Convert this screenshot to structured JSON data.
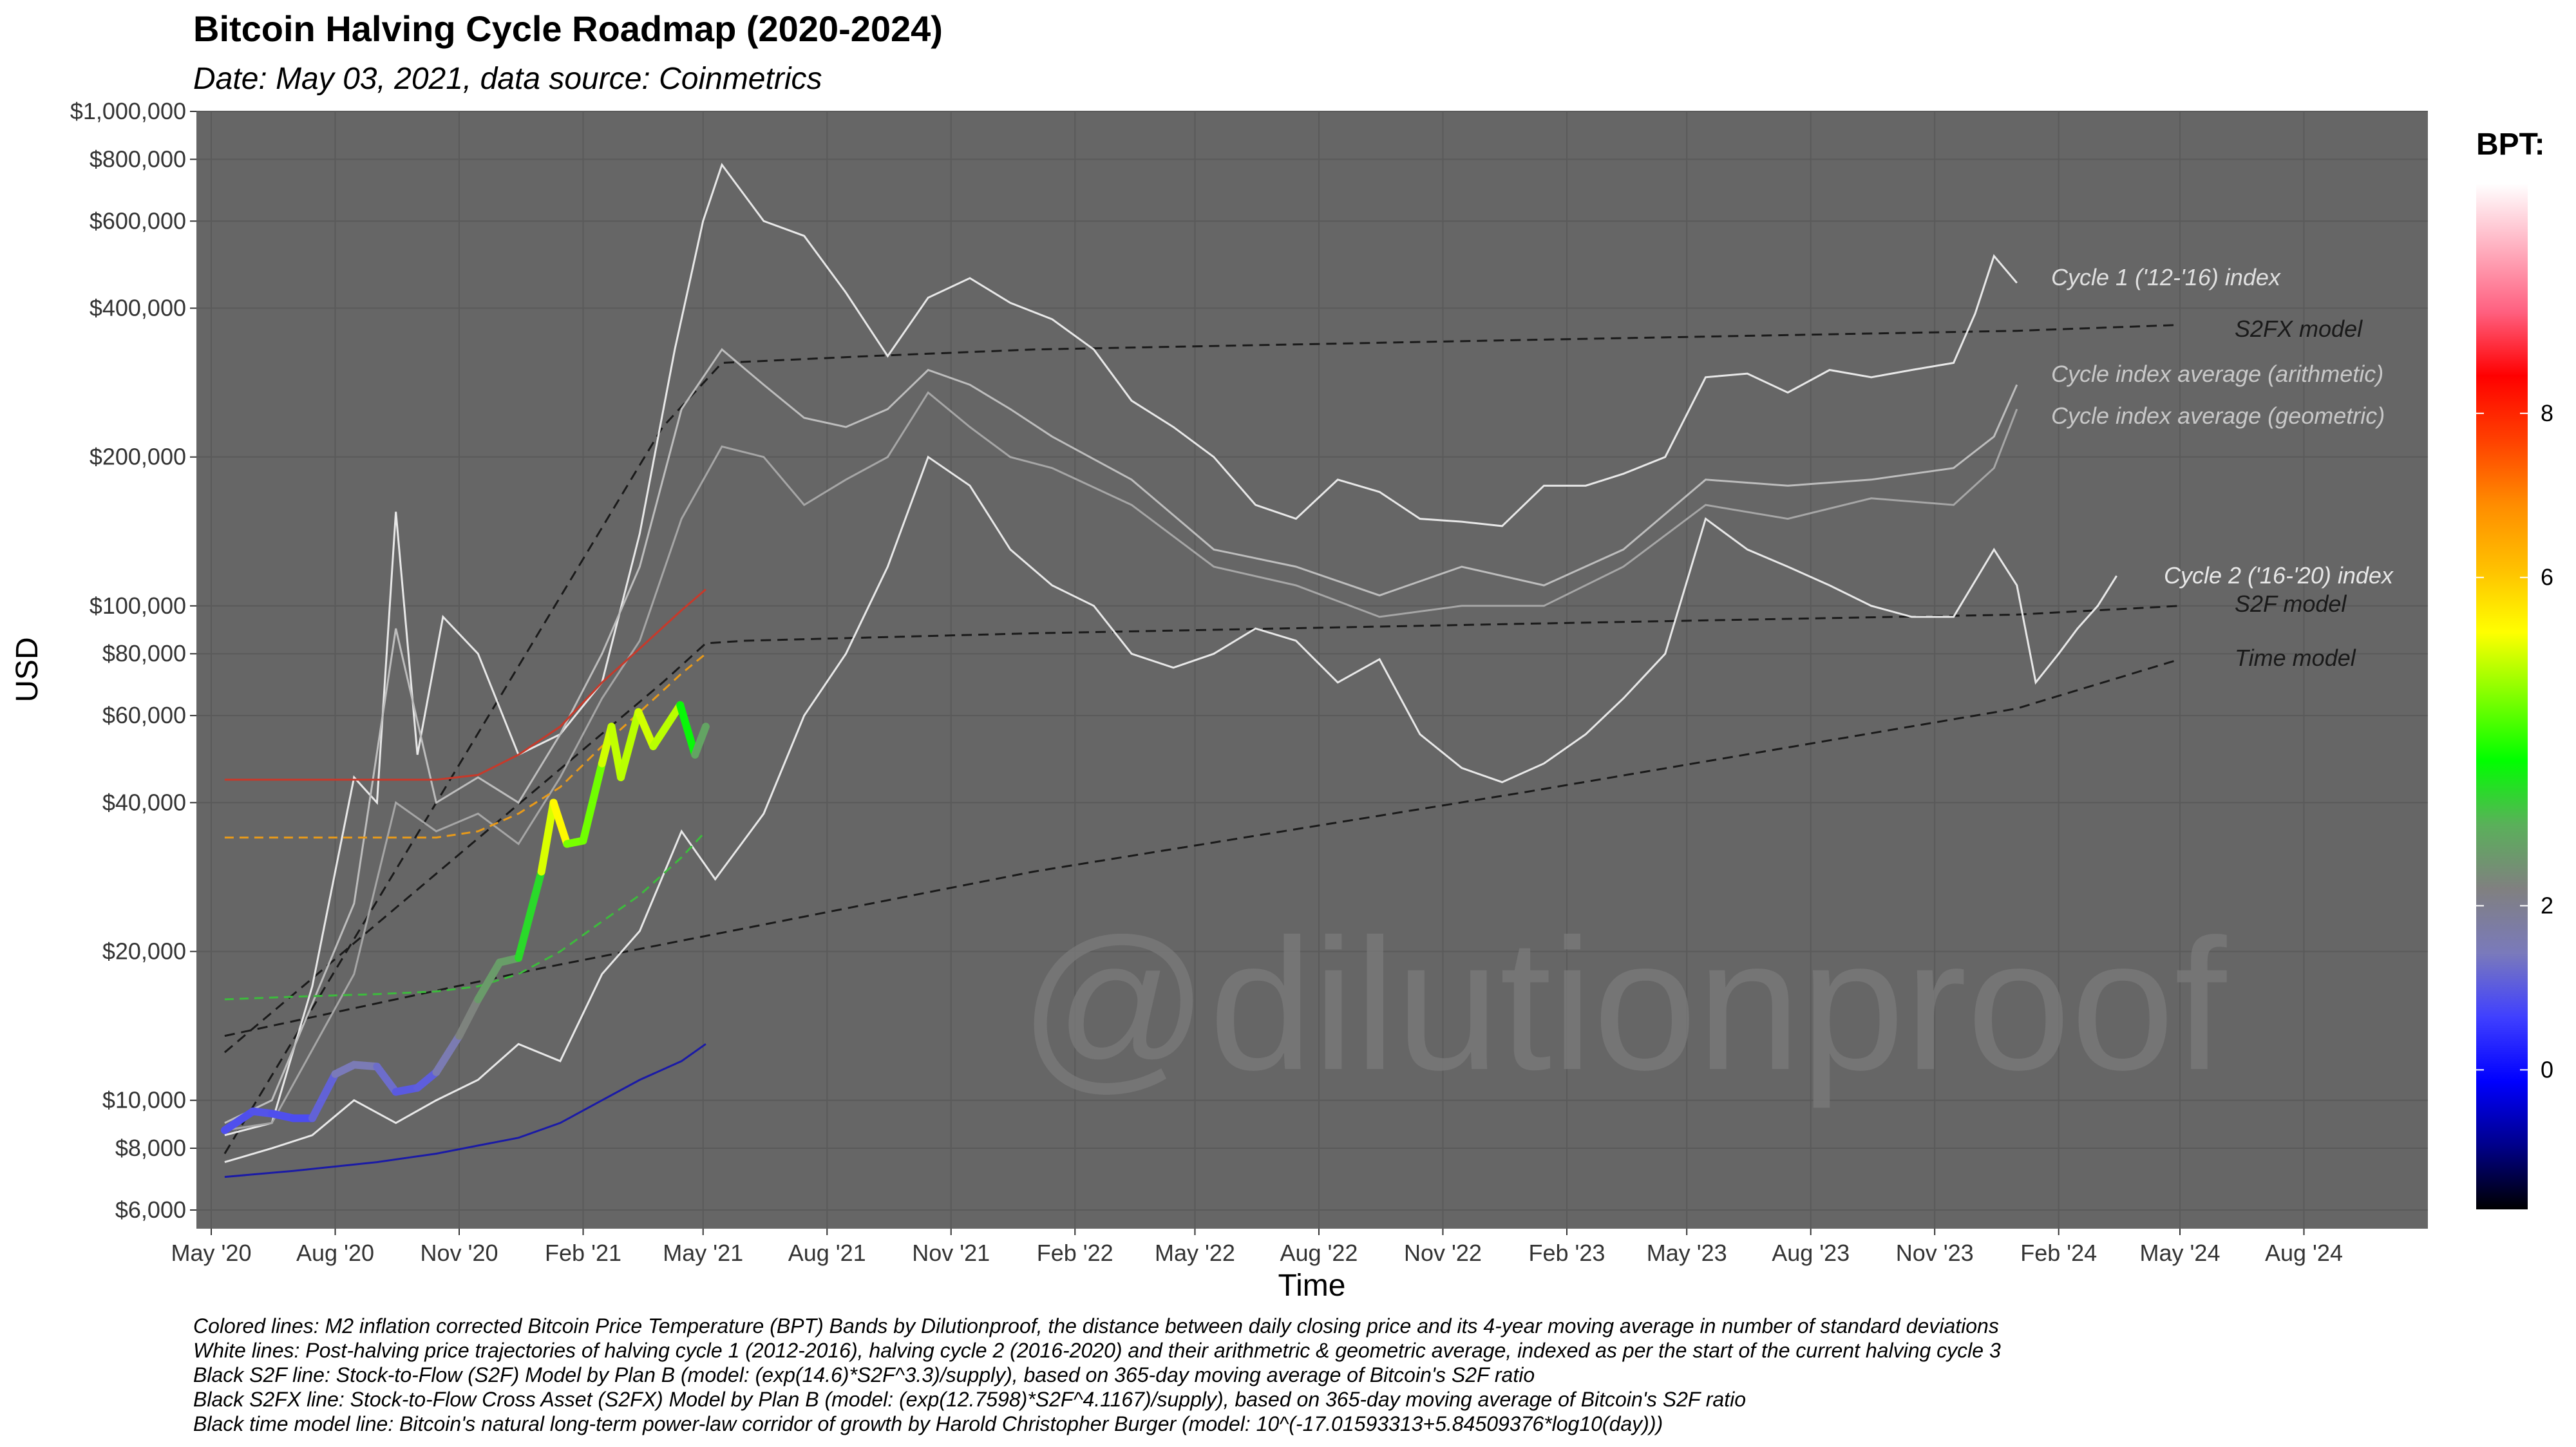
{
  "chart_data": {
    "type": "line",
    "title": "Bitcoin Halving Cycle Roadmap (2020-2024)",
    "subtitle": "Date: May 03, 2021, data source: Coinmetrics",
    "xlabel": "Time",
    "ylabel": "USD",
    "y_scale": "log",
    "ylim": [
      5500,
      1000000
    ],
    "xlim": [
      "2020-04-20",
      "2024-11-01"
    ],
    "grid": true,
    "legend_position": "right",
    "watermark": "@dilutionproof",
    "y_ticks": [
      {
        "value": 6000,
        "label": "$6,000"
      },
      {
        "value": 8000,
        "label": "$8,000"
      },
      {
        "value": 10000,
        "label": "$10,000"
      },
      {
        "value": 20000,
        "label": "$20,000"
      },
      {
        "value": 40000,
        "label": "$40,000"
      },
      {
        "value": 60000,
        "label": "$60,000"
      },
      {
        "value": 80000,
        "label": "$80,000"
      },
      {
        "value": 100000,
        "label": "$100,000"
      },
      {
        "value": 200000,
        "label": "$200,000"
      },
      {
        "value": 400000,
        "label": "$400,000"
      },
      {
        "value": 600000,
        "label": "$600,000"
      },
      {
        "value": 800000,
        "label": "$800,000"
      },
      {
        "value": 1000000,
        "label": "$1,000,000"
      }
    ],
    "x_ticks": [
      {
        "date": "2020-05-01",
        "label": "May '20"
      },
      {
        "date": "2020-08-01",
        "label": "Aug '20"
      },
      {
        "date": "2020-11-01",
        "label": "Nov '20"
      },
      {
        "date": "2021-02-01",
        "label": "Feb '21"
      },
      {
        "date": "2021-05-01",
        "label": "May '21"
      },
      {
        "date": "2021-08-01",
        "label": "Aug '21"
      },
      {
        "date": "2021-11-01",
        "label": "Nov '21"
      },
      {
        "date": "2022-02-01",
        "label": "Feb '22"
      },
      {
        "date": "2022-05-01",
        "label": "May '22"
      },
      {
        "date": "2022-08-01",
        "label": "Aug '22"
      },
      {
        "date": "2022-11-01",
        "label": "Nov '22"
      },
      {
        "date": "2023-02-01",
        "label": "Feb '23"
      },
      {
        "date": "2023-05-01",
        "label": "May '23"
      },
      {
        "date": "2023-08-01",
        "label": "Aug '23"
      },
      {
        "date": "2023-11-01",
        "label": "Nov '23"
      },
      {
        "date": "2024-02-01",
        "label": "Feb '24"
      },
      {
        "date": "2024-05-01",
        "label": "May '24"
      },
      {
        "date": "2024-08-01",
        "label": "Aug '24"
      }
    ],
    "series": [
      {
        "name": "Cycle 1 ('12-'16) index",
        "color": "#e8e8e8",
        "style": "solid",
        "x": [
          "2020-05-11",
          "2020-06-15",
          "2020-07-15",
          "2020-08-15",
          "2020-09-01",
          "2020-09-15",
          "2020-10-01",
          "2020-10-20",
          "2020-11-15",
          "2020-12-15",
          "2021-01-15",
          "2021-02-15",
          "2021-03-15",
          "2021-04-10",
          "2021-05-01",
          "2021-05-15",
          "2021-06-15",
          "2021-07-15",
          "2021-08-15",
          "2021-09-15",
          "2021-10-15",
          "2021-11-15",
          "2021-12-15",
          "2022-01-15",
          "2022-02-15",
          "2022-03-15",
          "2022-04-15",
          "2022-05-15",
          "2022-06-15",
          "2022-07-15",
          "2022-08-15",
          "2022-09-15",
          "2022-10-15",
          "2022-11-15",
          "2022-12-15",
          "2023-01-15",
          "2023-02-15",
          "2023-03-15",
          "2023-04-15",
          "2023-05-15",
          "2023-06-15",
          "2023-07-15",
          "2023-08-15",
          "2023-09-15",
          "2023-10-15",
          "2023-11-15",
          "2023-12-01",
          "2023-12-15",
          "2024-01-01"
        ],
        "values": [
          8500,
          9000,
          17000,
          45000,
          40000,
          155000,
          50000,
          95000,
          80000,
          50000,
          55000,
          70000,
          140000,
          330000,
          600000,
          780000,
          600000,
          560000,
          430000,
          320000,
          420000,
          460000,
          410000,
          380000,
          330000,
          260000,
          230000,
          200000,
          160000,
          150000,
          180000,
          170000,
          150000,
          148000,
          145000,
          175000,
          175000,
          185000,
          200000,
          290000,
          295000,
          270000,
          300000,
          290000,
          300000,
          310000,
          390000,
          510000,
          450000
        ]
      },
      {
        "name": "Cycle index average (arithmetic)",
        "color": "#bdbdbd",
        "style": "solid",
        "x": [
          "2020-05-11",
          "2020-06-15",
          "2020-08-15",
          "2020-09-15",
          "2020-10-15",
          "2020-11-15",
          "2020-12-15",
          "2021-01-15",
          "2021-02-15",
          "2021-03-15",
          "2021-04-15",
          "2021-05-15",
          "2021-06-15",
          "2021-07-15",
          "2021-08-15",
          "2021-09-15",
          "2021-10-15",
          "2021-11-15",
          "2021-12-15",
          "2022-01-15",
          "2022-03-15",
          "2022-05-15",
          "2022-07-15",
          "2022-09-15",
          "2022-11-15",
          "2023-01-15",
          "2023-03-15",
          "2023-05-15",
          "2023-07-15",
          "2023-09-15",
          "2023-11-15",
          "2023-12-15",
          "2024-01-01"
        ],
        "values": [
          9000,
          10000,
          25000,
          90000,
          40000,
          45000,
          40000,
          55000,
          80000,
          120000,
          250000,
          330000,
          280000,
          240000,
          230000,
          250000,
          300000,
          280000,
          250000,
          220000,
          180000,
          130000,
          120000,
          105000,
          120000,
          110000,
          130000,
          180000,
          175000,
          180000,
          190000,
          220000,
          280000
        ]
      },
      {
        "name": "Cycle index average (geometric)",
        "color": "#a6a6a6",
        "style": "solid",
        "x": [
          "2020-05-11",
          "2020-06-15",
          "2020-08-15",
          "2020-09-15",
          "2020-10-15",
          "2020-11-15",
          "2020-12-15",
          "2021-01-15",
          "2021-02-15",
          "2021-03-15",
          "2021-04-15",
          "2021-05-15",
          "2021-06-15",
          "2021-07-15",
          "2021-08-15",
          "2021-09-15",
          "2021-10-15",
          "2021-11-15",
          "2021-12-15",
          "2022-01-15",
          "2022-03-15",
          "2022-05-15",
          "2022-07-15",
          "2022-09-15",
          "2022-11-15",
          "2023-01-15",
          "2023-03-15",
          "2023-05-15",
          "2023-07-15",
          "2023-09-15",
          "2023-11-15",
          "2023-12-15",
          "2024-01-01"
        ],
        "values": [
          8700,
          9000,
          18000,
          40000,
          35000,
          38000,
          33000,
          45000,
          65000,
          85000,
          150000,
          210000,
          200000,
          160000,
          180000,
          200000,
          270000,
          230000,
          200000,
          190000,
          160000,
          120000,
          110000,
          95000,
          100000,
          100000,
          120000,
          160000,
          150000,
          165000,
          160000,
          190000,
          250000
        ]
      },
      {
        "name": "Cycle 2 ('16-'20) index",
        "color": "#e8e8e8",
        "style": "solid",
        "x": [
          "2020-05-11",
          "2020-06-15",
          "2020-07-15",
          "2020-08-15",
          "2020-09-15",
          "2020-10-15",
          "2020-11-15",
          "2020-12-15",
          "2021-01-15",
          "2021-02-15",
          "2021-03-15",
          "2021-04-15",
          "2021-05-10",
          "2021-06-15",
          "2021-07-15",
          "2021-08-15",
          "2021-09-15",
          "2021-10-15",
          "2021-11-15",
          "2021-12-15",
          "2022-01-15",
          "2022-02-15",
          "2022-03-15",
          "2022-04-15",
          "2022-05-15",
          "2022-06-15",
          "2022-07-15",
          "2022-08-15",
          "2022-09-15",
          "2022-10-15",
          "2022-11-15",
          "2022-12-15",
          "2023-01-15",
          "2023-02-15",
          "2023-03-15",
          "2023-04-15",
          "2023-05-15",
          "2023-06-15",
          "2023-07-15",
          "2023-08-15",
          "2023-09-15",
          "2023-10-15",
          "2023-11-15",
          "2023-12-15",
          "2024-01-01",
          "2024-01-15",
          "2024-02-01",
          "2024-02-15",
          "2024-03-01",
          "2024-03-15"
        ],
        "values": [
          7500,
          8000,
          8500,
          10000,
          9000,
          10000,
          11000,
          13000,
          12000,
          18000,
          22000,
          35000,
          28000,
          38000,
          60000,
          80000,
          120000,
          200000,
          175000,
          130000,
          110000,
          100000,
          80000,
          75000,
          80000,
          90000,
          85000,
          70000,
          78000,
          55000,
          47000,
          44000,
          48000,
          55000,
          65000,
          80000,
          150000,
          130000,
          120000,
          110000,
          100000,
          95000,
          95000,
          130000,
          110000,
          70000,
          80000,
          90000,
          100000,
          115000
        ]
      },
      {
        "name": "Bitcoin Price Temperature (BPT)",
        "style": "colored-by-bpt",
        "x": [
          "2020-05-11",
          "2020-06-01",
          "2020-06-15",
          "2020-07-01",
          "2020-07-15",
          "2020-08-01",
          "2020-08-15",
          "2020-09-01",
          "2020-09-15",
          "2020-10-01",
          "2020-10-15",
          "2020-11-01",
          "2020-11-15",
          "2020-12-01",
          "2020-12-15",
          "2021-01-01",
          "2021-01-10",
          "2021-01-20",
          "2021-02-01",
          "2021-02-15",
          "2021-02-22",
          "2021-03-01",
          "2021-03-14",
          "2021-03-25",
          "2021-04-14",
          "2021-04-25",
          "2021-05-03"
        ],
        "values": [
          8700,
          9500,
          9400,
          9200,
          9200,
          11300,
          11800,
          11700,
          10400,
          10600,
          11400,
          13500,
          16000,
          19000,
          19400,
          29000,
          40000,
          33000,
          33500,
          48000,
          57000,
          45000,
          61000,
          52000,
          63000,
          50000,
          57000
        ],
        "bpt": [
          0.8,
          0.9,
          0.9,
          0.8,
          0.8,
          1.4,
          1.5,
          1.5,
          1.0,
          1.0,
          1.1,
          2.0,
          2.5,
          2.8,
          2.6,
          4.2,
          6.0,
          4.8,
          4.2,
          4.7,
          5.4,
          4.5,
          5.3,
          4.8,
          5.0,
          2.4,
          3.2
        ]
      }
    ],
    "bands": [
      {
        "name": "BPT 8 band",
        "color": "#c8392a",
        "style": "solid",
        "x": [
          "2020-05-11",
          "2020-07-01",
          "2020-09-01",
          "2020-10-15",
          "2020-11-15",
          "2020-12-15",
          "2021-01-15",
          "2021-02-15",
          "2021-03-15",
          "2021-04-15",
          "2021-05-03"
        ],
        "values": [
          44500,
          44500,
          44500,
          44500,
          45500,
          50000,
          57000,
          70000,
          82000,
          98000,
          108000
        ]
      },
      {
        "name": "BPT 6 band",
        "color": "#e89a1a",
        "style": "dashed",
        "x": [
          "2020-05-11",
          "2020-07-01",
          "2020-09-01",
          "2020-10-15",
          "2020-11-15",
          "2020-12-15",
          "2021-01-15",
          "2021-02-15",
          "2021-03-15",
          "2021-04-15",
          "2021-05-03"
        ],
        "values": [
          34000,
          34000,
          34000,
          34000,
          35000,
          38000,
          43000,
          52000,
          61000,
          73000,
          80000
        ]
      },
      {
        "name": "BPT 2 band",
        "color": "#3dbb3d",
        "style": "dashed",
        "x": [
          "2020-05-11",
          "2020-07-01",
          "2020-09-01",
          "2020-10-15",
          "2020-11-15",
          "2020-12-15",
          "2021-01-15",
          "2021-02-15",
          "2021-03-15",
          "2021-04-15",
          "2021-05-03"
        ],
        "values": [
          16000,
          16200,
          16400,
          16600,
          17000,
          18000,
          20000,
          23000,
          26000,
          31000,
          35000
        ]
      },
      {
        "name": "BPT 0 band",
        "color": "#1a1aa6",
        "style": "solid",
        "x": [
          "2020-05-11",
          "2020-07-01",
          "2020-09-01",
          "2020-10-15",
          "2020-11-15",
          "2020-12-15",
          "2021-01-15",
          "2021-02-15",
          "2021-03-15",
          "2021-04-15",
          "2021-05-03"
        ],
        "values": [
          7000,
          7200,
          7500,
          7800,
          8100,
          8400,
          9000,
          10000,
          11000,
          12000,
          13000
        ]
      }
    ],
    "models": [
      {
        "name": "S2FX model",
        "color": "#1a1a1a",
        "style": "dashed",
        "x": [
          "2020-05-11",
          "2021-04-01",
          "2021-05-15",
          "2021-09-01",
          "2022-01-01",
          "2023-01-01",
          "2024-01-01",
          "2024-05-01"
        ],
        "values": [
          7800,
          230000,
          310000,
          320000,
          330000,
          345000,
          360000,
          370000
        ]
      },
      {
        "name": "S2F model",
        "color": "#1a1a1a",
        "style": "dashed",
        "x": [
          "2020-05-11",
          "2021-04-01",
          "2021-05-03",
          "2021-06-01",
          "2022-01-01",
          "2023-01-01",
          "2024-01-01",
          "2024-05-01"
        ],
        "values": [
          12500,
          70000,
          84000,
          85000,
          88000,
          92000,
          96000,
          100000
        ]
      },
      {
        "name": "Time model",
        "color": "#1a1a1a",
        "style": "dashed",
        "x": [
          "2020-05-11",
          "2021-01-01",
          "2022-01-01",
          "2023-01-01",
          "2024-01-01",
          "2024-05-01"
        ],
        "values": [
          13500,
          18500,
          29000,
          42000,
          62000,
          78000
        ]
      }
    ],
    "legend": {
      "title": "BPT:",
      "ticks": [
        {
          "value": 0,
          "label": "0"
        },
        {
          "value": 2,
          "label": "2"
        },
        {
          "value": 6,
          "label": "6"
        },
        {
          "value": 8,
          "label": "8"
        }
      ],
      "range": [
        -1.7,
        10.8
      ],
      "colors": [
        "#000000",
        "#00008b",
        "#0000ff",
        "#4040ff",
        "#7a7abb",
        "#808080",
        "#5ab05a",
        "#00ff00",
        "#80ff00",
        "#ffff00",
        "#ffc000",
        "#ff8c00",
        "#ff4000",
        "#ff0000",
        "#ff6080",
        "#ffb0c0",
        "#ffffff"
      ]
    },
    "annotations": [
      {
        "text": "Cycle 1 ('12-'16) index",
        "color": "#e0e0e0"
      },
      {
        "text": "S2FX model",
        "color": "#1a1a1a"
      },
      {
        "text": "Cycle index average (arithmetic)",
        "color": "#c8c8c8"
      },
      {
        "text": "Cycle index average (geometric)",
        "color": "#c8c8c8"
      },
      {
        "text": "Cycle 2 ('16-'20) index",
        "color": "#e8e8e8"
      },
      {
        "text": "S2F model",
        "color": "#1a1a1a"
      },
      {
        "text": "Time model",
        "color": "#1a1a1a"
      }
    ],
    "captions": [
      "Colored lines: M2 inflation corrected Bitcoin Price Temperature (BPT) Bands by Dilutionproof, the distance between daily closing price and its 4-year moving average in number of standard deviations",
      "White lines: Post-halving price trajectories of halving cycle 1 (2012-2016), halving cycle 2 (2016-2020) and their arithmetric & geometric average, indexed as per the start of the current halving cycle 3",
      "Black S2F line: Stock-to-Flow (S2F) Model by Plan B (model: (exp(14.6)*S2F^3.3)/supply), based on 365-day moving average of Bitcoin's S2F ratio",
      "Black S2FX line: Stock-to-Flow Cross Asset (S2FX) Model by Plan B (model: (exp(12.7598)*S2F^4.1167)/supply), based on 365-day moving average of Bitcoin's S2F ratio",
      "Black time model line: Bitcoin's natural long-term power-law corridor of growth by Harold Christopher Burger (model: 10^(-17.01593313+5.84509376*log10(day)))"
    ]
  }
}
